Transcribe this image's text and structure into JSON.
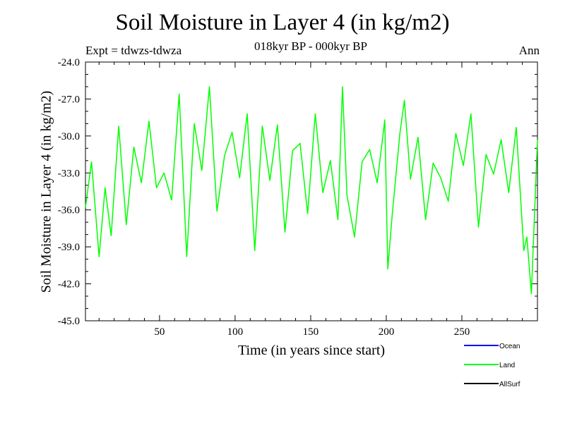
{
  "header": {
    "title": "Soil Moisture in Layer 4 (in kg/m2)",
    "experiment": "Expt = tdwzs-tdwza",
    "period": "018kyr BP - 000kyr BP",
    "season": "Ann"
  },
  "chart_data": {
    "type": "line",
    "title": "Soil Moisture in Layer 4 (in kg/m2)",
    "xlabel": "Time (in years since start)",
    "ylabel": "Soil Moisture in Layer 4 (in kg/m2)",
    "xlim": [
      1,
      300
    ],
    "ylim": [
      -45.0,
      -24.0
    ],
    "x_ticks": [
      50,
      100,
      150,
      200,
      250
    ],
    "y_ticks": [
      -45.0,
      -42.0,
      -39.0,
      -36.0,
      -33.0,
      -30.0,
      -27.0,
      -24.0
    ],
    "y_tick_labels": [
      "-45.0",
      "-42.0",
      "-39.0",
      "-36.0",
      "-33.0",
      "-30.0",
      "-27.0",
      "-24.0"
    ],
    "grid": false,
    "legend_position": "bottom-right",
    "series": [
      {
        "name": "Ocean",
        "color": "#0000ff",
        "values": []
      },
      {
        "name": "Land",
        "color": "#00ff00",
        "x": [
          1,
          5,
          10,
          14,
          18,
          23,
          28,
          33,
          38,
          43,
          48,
          53,
          58,
          63,
          68,
          73,
          78,
          83,
          88,
          93,
          98,
          103,
          108,
          113,
          118,
          123,
          128,
          133,
          138,
          143,
          148,
          153,
          158,
          163,
          168,
          171,
          174,
          179,
          184,
          189,
          194,
          199,
          201,
          204,
          209,
          212,
          216,
          221,
          226,
          231,
          236,
          241,
          246,
          251,
          256,
          261,
          266,
          271,
          276,
          281,
          286,
          291,
          293,
          296,
          300
        ],
        "values": [
          -35.8,
          -32.1,
          -39.8,
          -34.2,
          -38.1,
          -29.2,
          -37.2,
          -30.9,
          -33.8,
          -28.8,
          -34.2,
          -33.0,
          -35.2,
          -26.6,
          -39.8,
          -29.0,
          -32.8,
          -26.0,
          -36.1,
          -31.6,
          -29.7,
          -33.4,
          -28.2,
          -39.3,
          -29.2,
          -33.6,
          -29.1,
          -37.8,
          -31.2,
          -30.6,
          -36.3,
          -28.2,
          -34.6,
          -32.0,
          -36.8,
          -26.0,
          -34.8,
          -38.2,
          -32.1,
          -31.1,
          -33.8,
          -28.7,
          -40.8,
          -36.3,
          -29.8,
          -27.1,
          -33.5,
          -30.1,
          -36.8,
          -32.2,
          -33.4,
          -35.3,
          -29.8,
          -32.4,
          -28.2,
          -37.4,
          -31.5,
          -33.1,
          -30.3,
          -34.6,
          -29.3,
          -39.3,
          -38.2,
          -42.8,
          -30.3
        ]
      },
      {
        "name": "AllSurf",
        "color": "#000000",
        "values": []
      }
    ]
  }
}
